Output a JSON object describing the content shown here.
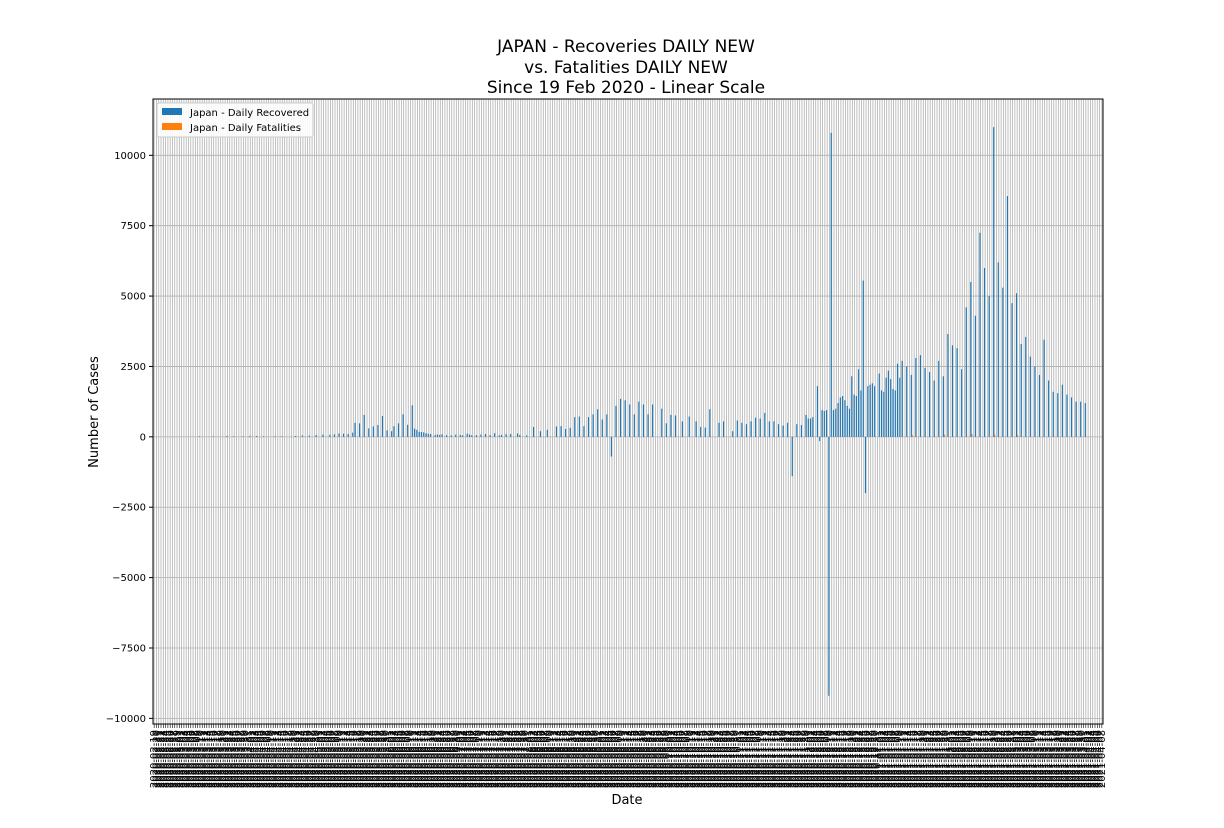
{
  "chart_data": {
    "type": "bar",
    "title_lines": [
      "JAPAN - Recoveries DAILY NEW",
      "vs. Fatalities DAILY NEW",
      "Since 19 Feb 2020 - Linear Scale"
    ],
    "xlabel": "Date",
    "ylabel": "Number of Cases",
    "ylim": [
      -10200,
      12000
    ],
    "yticks": [
      -10000,
      -7500,
      -5000,
      -2500,
      0,
      2500,
      5000,
      7500,
      10000
    ],
    "ytick_labels": [
      "−10000",
      "−7500",
      "−5000",
      "−2500",
      "0",
      "2500",
      "5000",
      "7500",
      "10000"
    ],
    "grid": true,
    "legend_position": "upper-left",
    "date_start": "2020-02-19",
    "num_days": 415,
    "series": [
      {
        "name": "Japan - Daily Recovered",
        "color": "#1f77b4",
        "points": [
          [
            "2020-03-10",
            20
          ],
          [
            "2020-03-16",
            20
          ],
          [
            "2020-03-22",
            30
          ],
          [
            "2020-03-25",
            20
          ],
          [
            "2020-03-29",
            20
          ],
          [
            "2020-04-01",
            30
          ],
          [
            "2020-04-04",
            30
          ],
          [
            "2020-04-07",
            20
          ],
          [
            "2020-04-12",
            20
          ],
          [
            "2020-04-15",
            20
          ],
          [
            "2020-04-21",
            30
          ],
          [
            "2020-04-24",
            50
          ],
          [
            "2020-04-27",
            40
          ],
          [
            "2020-04-30",
            60
          ],
          [
            "2020-05-03",
            80
          ],
          [
            "2020-05-06",
            70
          ],
          [
            "2020-05-08",
            90
          ],
          [
            "2020-05-10",
            120
          ],
          [
            "2020-05-12",
            110
          ],
          [
            "2020-05-14",
            100
          ],
          [
            "2020-05-16",
            150
          ],
          [
            "2020-05-17",
            500
          ],
          [
            "2020-05-19",
            480
          ],
          [
            "2020-05-21",
            780
          ],
          [
            "2020-05-23",
            300
          ],
          [
            "2020-05-25",
            370
          ],
          [
            "2020-05-27",
            420
          ],
          [
            "2020-05-29",
            740
          ],
          [
            "2020-05-31",
            230
          ],
          [
            "2020-06-02",
            200
          ],
          [
            "2020-06-03",
            380
          ],
          [
            "2020-06-05",
            480
          ],
          [
            "2020-06-07",
            800
          ],
          [
            "2020-06-09",
            430
          ],
          [
            "2020-06-11",
            1120
          ],
          [
            "2020-06-12",
            290
          ],
          [
            "2020-06-13",
            250
          ],
          [
            "2020-06-14",
            180
          ],
          [
            "2020-06-15",
            170
          ],
          [
            "2020-06-16",
            160
          ],
          [
            "2020-06-17",
            130
          ],
          [
            "2020-06-18",
            110
          ],
          [
            "2020-06-19",
            100
          ],
          [
            "2020-06-21",
            60
          ],
          [
            "2020-06-22",
            80
          ],
          [
            "2020-06-23",
            70
          ],
          [
            "2020-06-24",
            90
          ],
          [
            "2020-06-26",
            60
          ],
          [
            "2020-06-28",
            50
          ],
          [
            "2020-06-30",
            80
          ],
          [
            "2020-07-02",
            70
          ],
          [
            "2020-07-03",
            50
          ],
          [
            "2020-07-05",
            110
          ],
          [
            "2020-07-06",
            80
          ],
          [
            "2020-07-07",
            60
          ],
          [
            "2020-07-09",
            60
          ],
          [
            "2020-07-11",
            80
          ],
          [
            "2020-07-13",
            100
          ],
          [
            "2020-07-15",
            60
          ],
          [
            "2020-07-17",
            130
          ],
          [
            "2020-07-19",
            50
          ],
          [
            "2020-07-20",
            70
          ],
          [
            "2020-07-22",
            90
          ],
          [
            "2020-07-24",
            100
          ],
          [
            "2020-07-27",
            120
          ],
          [
            "2020-07-28",
            70
          ],
          [
            "2020-07-31",
            50
          ],
          [
            "2020-08-03",
            350
          ],
          [
            "2020-08-06",
            200
          ],
          [
            "2020-08-09",
            250
          ],
          [
            "2020-08-13",
            370
          ],
          [
            "2020-08-15",
            380
          ],
          [
            "2020-08-17",
            280
          ],
          [
            "2020-08-19",
            320
          ],
          [
            "2020-08-21",
            700
          ],
          [
            "2020-08-23",
            720
          ],
          [
            "2020-08-25",
            380
          ],
          [
            "2020-08-27",
            700
          ],
          [
            "2020-08-29",
            800
          ],
          [
            "2020-08-31",
            980
          ],
          [
            "2020-09-02",
            620
          ],
          [
            "2020-09-04",
            800
          ],
          [
            "2020-09-06",
            -700
          ],
          [
            "2020-09-08",
            1100
          ],
          [
            "2020-09-10",
            1350
          ],
          [
            "2020-09-12",
            1300
          ],
          [
            "2020-09-14",
            1150
          ],
          [
            "2020-09-16",
            800
          ],
          [
            "2020-09-18",
            1250
          ],
          [
            "2020-09-20",
            1150
          ],
          [
            "2020-09-22",
            800
          ],
          [
            "2020-09-24",
            1150
          ],
          [
            "2020-09-28",
            1000
          ],
          [
            "2020-09-30",
            480
          ],
          [
            "2020-10-02",
            780
          ],
          [
            "2020-10-04",
            760
          ],
          [
            "2020-10-07",
            550
          ],
          [
            "2020-10-10",
            720
          ],
          [
            "2020-10-13",
            550
          ],
          [
            "2020-10-15",
            350
          ],
          [
            "2020-10-17",
            330
          ],
          [
            "2020-10-19",
            980
          ],
          [
            "2020-10-23",
            500
          ],
          [
            "2020-10-25",
            550
          ],
          [
            "2020-10-29",
            200
          ],
          [
            "2020-10-31",
            580
          ],
          [
            "2020-11-02",
            500
          ],
          [
            "2020-11-04",
            450
          ],
          [
            "2020-11-06",
            550
          ],
          [
            "2020-11-08",
            680
          ],
          [
            "2020-11-10",
            650
          ],
          [
            "2020-11-12",
            850
          ],
          [
            "2020-11-14",
            550
          ],
          [
            "2020-11-16",
            550
          ],
          [
            "2020-11-18",
            450
          ],
          [
            "2020-11-20",
            400
          ],
          [
            "2020-11-22",
            500
          ],
          [
            "2020-11-24",
            -1400
          ],
          [
            "2020-11-26",
            450
          ],
          [
            "2020-11-28",
            420
          ],
          [
            "2020-11-30",
            780
          ],
          [
            "2020-12-01",
            650
          ],
          [
            "2020-12-02",
            650
          ],
          [
            "2020-12-03",
            700
          ],
          [
            "2020-12-05",
            1800
          ],
          [
            "2020-12-06",
            -150
          ],
          [
            "2020-12-07",
            950
          ],
          [
            "2020-12-08",
            920
          ],
          [
            "2020-12-09",
            950
          ],
          [
            "2020-12-10",
            -9200
          ],
          [
            "2020-12-11",
            10800
          ],
          [
            "2020-12-12",
            950
          ],
          [
            "2020-12-13",
            1000
          ],
          [
            "2020-12-14",
            1200
          ],
          [
            "2020-12-15",
            1400
          ],
          [
            "2020-12-16",
            1450
          ],
          [
            "2020-12-17",
            1300
          ],
          [
            "2020-12-18",
            1100
          ],
          [
            "2020-12-19",
            1000
          ],
          [
            "2020-12-20",
            2150
          ],
          [
            "2020-12-21",
            1500
          ],
          [
            "2020-12-22",
            1450
          ],
          [
            "2020-12-23",
            2400
          ],
          [
            "2020-12-24",
            1650
          ],
          [
            "2020-12-25",
            5550
          ],
          [
            "2020-12-26",
            -2000
          ],
          [
            "2020-12-27",
            1800
          ],
          [
            "2020-12-28",
            1850
          ],
          [
            "2020-12-29",
            1900
          ],
          [
            "2020-12-30",
            1800
          ],
          [
            "2021-01-01",
            2250
          ],
          [
            "2021-01-02",
            1650
          ],
          [
            "2021-01-03",
            1600
          ],
          [
            "2021-01-04",
            2100
          ],
          [
            "2021-01-05",
            2350
          ],
          [
            "2021-01-06",
            2050
          ],
          [
            "2021-01-07",
            1700
          ],
          [
            "2021-01-08",
            1650
          ],
          [
            "2021-01-09",
            2600
          ],
          [
            "2021-01-10",
            2100
          ],
          [
            "2021-01-11",
            2700
          ],
          [
            "2021-01-13",
            2500
          ],
          [
            "2021-01-15",
            2200
          ],
          [
            "2021-01-17",
            2800
          ],
          [
            "2021-01-19",
            2900
          ],
          [
            "2021-01-21",
            2450
          ],
          [
            "2021-01-23",
            2300
          ],
          [
            "2021-01-25",
            2000
          ],
          [
            "2021-01-27",
            2700
          ],
          [
            "2021-01-29",
            2150
          ],
          [
            "2021-01-31",
            3650
          ],
          [
            "2021-02-02",
            3250
          ],
          [
            "2021-02-04",
            3150
          ],
          [
            "2021-02-06",
            2400
          ],
          [
            "2021-02-08",
            4600
          ],
          [
            "2021-02-10",
            5500
          ],
          [
            "2021-02-12",
            4300
          ],
          [
            "2021-02-14",
            7250
          ],
          [
            "2021-02-16",
            6000
          ],
          [
            "2021-02-18",
            5000
          ],
          [
            "2021-02-20",
            11000
          ],
          [
            "2021-02-22",
            6200
          ],
          [
            "2021-02-24",
            5300
          ],
          [
            "2021-02-26",
            8550
          ],
          [
            "2021-02-28",
            4750
          ],
          [
            "2021-03-02",
            5100
          ],
          [
            "2021-03-04",
            3300
          ],
          [
            "2021-03-06",
            3550
          ],
          [
            "2021-03-08",
            2850
          ],
          [
            "2021-03-10",
            2500
          ],
          [
            "2021-03-12",
            2200
          ],
          [
            "2021-03-14",
            3450
          ],
          [
            "2021-03-16",
            2000
          ],
          [
            "2021-03-18",
            1600
          ],
          [
            "2021-03-20",
            1550
          ],
          [
            "2021-03-22",
            1850
          ],
          [
            "2021-03-24",
            1500
          ],
          [
            "2021-03-26",
            1400
          ],
          [
            "2021-03-28",
            1250
          ],
          [
            "2021-03-30",
            1250
          ],
          [
            "2021-04-01",
            1200
          ]
        ]
      },
      {
        "name": "Japan - Daily Fatalities",
        "color": "#ff7f0e",
        "points": [
          [
            "2021-01-15",
            60
          ],
          [
            "2021-01-29",
            80
          ],
          [
            "2021-02-10",
            100
          ],
          [
            "2021-02-20",
            80
          ],
          [
            "2021-03-02",
            60
          ]
        ]
      }
    ]
  }
}
